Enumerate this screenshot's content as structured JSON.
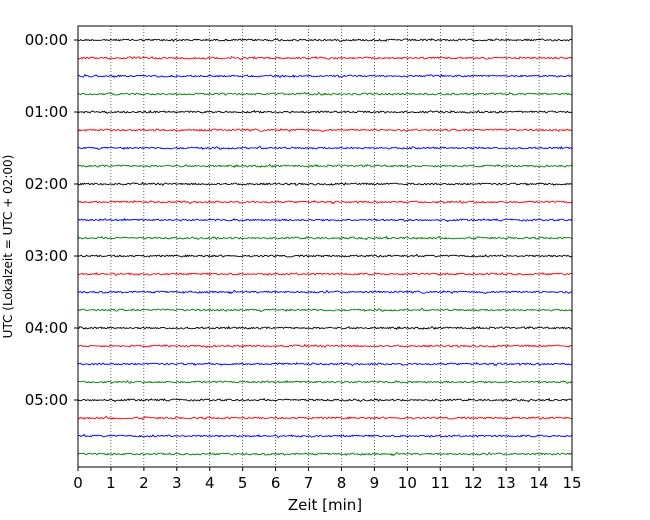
{
  "chart_data": {
    "type": "line",
    "title": "",
    "xlabel": "Zeit  [min]",
    "ylabel": "UTC (Lokalzeit = UTC + 02:00)",
    "xlim": [
      0,
      15
    ],
    "x_ticks": [
      "0",
      "1",
      "2",
      "3",
      "4",
      "5",
      "6",
      "7",
      "8",
      "9",
      "10",
      "11",
      "12",
      "13",
      "14",
      "15"
    ],
    "y_tick_labels": [
      "00:00",
      "01:00",
      "02:00",
      "03:00",
      "04:00",
      "05:00"
    ],
    "grid": "vertical dotted at each minute",
    "trace_interval_min": 15,
    "trace_colors": [
      "#000000",
      "#ff0000",
      "#0000ff",
      "#008000"
    ],
    "traces": [
      {
        "start": "00:00",
        "color": "#000000"
      },
      {
        "start": "00:15",
        "color": "#ff0000"
      },
      {
        "start": "00:30",
        "color": "#0000ff"
      },
      {
        "start": "00:45",
        "color": "#008000"
      },
      {
        "start": "01:00",
        "color": "#000000"
      },
      {
        "start": "01:15",
        "color": "#ff0000"
      },
      {
        "start": "01:30",
        "color": "#0000ff"
      },
      {
        "start": "01:45",
        "color": "#008000"
      },
      {
        "start": "02:00",
        "color": "#000000"
      },
      {
        "start": "02:15",
        "color": "#ff0000"
      },
      {
        "start": "02:30",
        "color": "#0000ff"
      },
      {
        "start": "02:45",
        "color": "#008000"
      },
      {
        "start": "03:00",
        "color": "#000000"
      },
      {
        "start": "03:15",
        "color": "#ff0000"
      },
      {
        "start": "03:30",
        "color": "#0000ff"
      },
      {
        "start": "03:45",
        "color": "#008000"
      },
      {
        "start": "04:00",
        "color": "#000000"
      },
      {
        "start": "04:15",
        "color": "#ff0000"
      },
      {
        "start": "04:30",
        "color": "#0000ff"
      },
      {
        "start": "04:45",
        "color": "#008000"
      },
      {
        "start": "05:00",
        "color": "#000000"
      },
      {
        "start": "05:15",
        "color": "#ff0000"
      },
      {
        "start": "05:30",
        "color": "#0000ff"
      },
      {
        "start": "05:45",
        "color": "#008000"
      }
    ]
  }
}
